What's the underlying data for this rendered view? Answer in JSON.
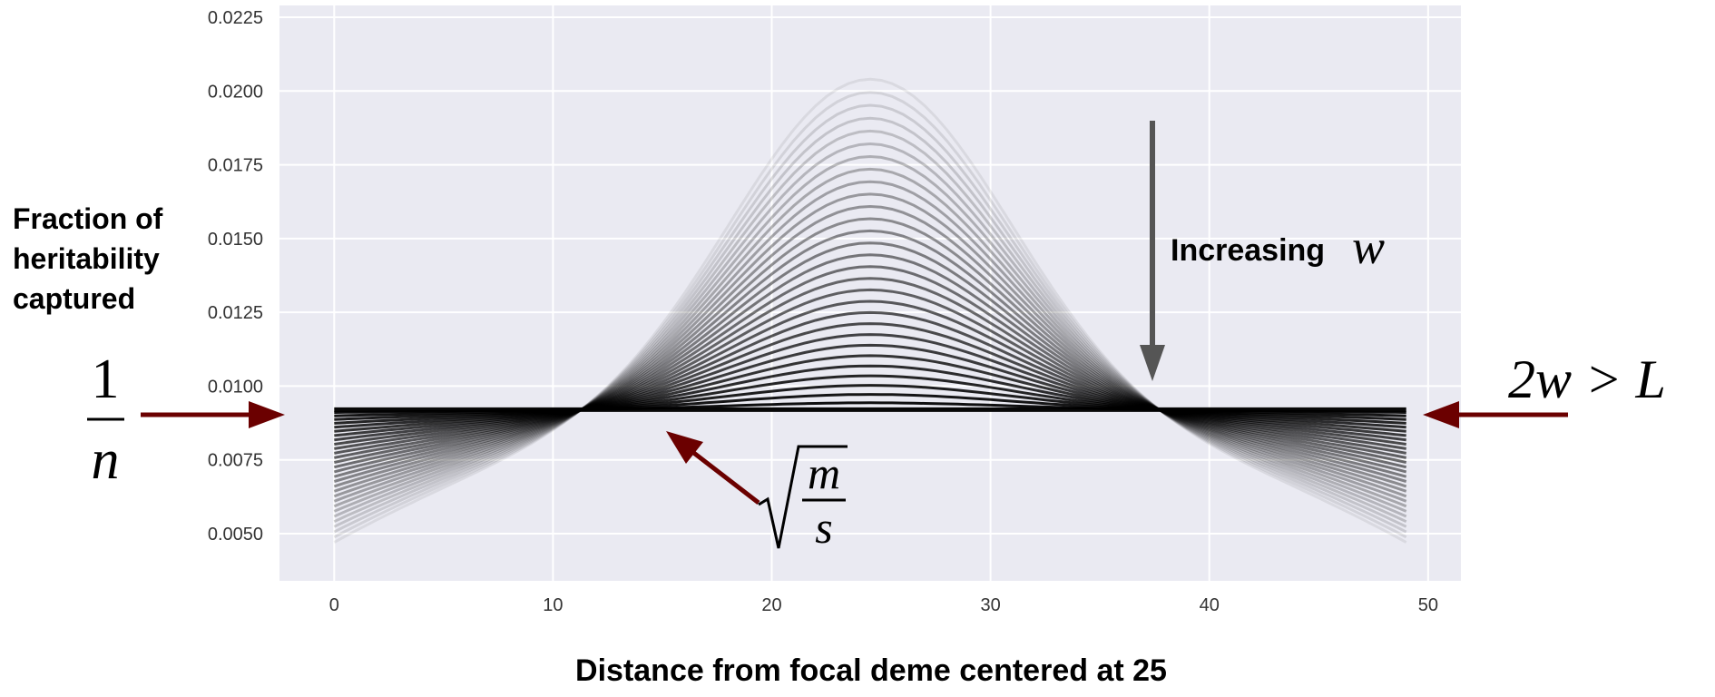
{
  "chart_data": {
    "type": "line",
    "xlabel": "Distance from focal deme centered at 25",
    "ylabel": "Fraction of heritability captured",
    "ylabel_lines": [
      "Fraction of",
      "heritability",
      "captured"
    ],
    "xlim": [
      -2.5,
      51.5
    ],
    "ylim": [
      0.0034,
      0.0229
    ],
    "x_ticks": [
      0,
      10,
      20,
      30,
      40,
      50
    ],
    "y_ticks": [
      "0.0050",
      "0.0075",
      "0.0100",
      "0.0125",
      "0.0150",
      "0.0175",
      "0.0200",
      "0.0225"
    ],
    "x_tick_labels": [
      "0",
      "10",
      "20",
      "30",
      "40",
      "50"
    ],
    "grid": true,
    "background": "#eaeaf2",
    "grid_color": "#ffffff",
    "line_color": "#000000",
    "arrow_color": "#6b0000",
    "annotation_arrow_color": "#555555",
    "x_domain": [
      0,
      49
    ],
    "center": 24.5,
    "baseline": 0.0092,
    "series_description": "family of curves, darker as w increases",
    "series_count": 30,
    "peak_max": 0.0204,
    "edge_min": 0.0047,
    "annotations": {
      "increasing": "Increasing",
      "increasing_symbol": "w",
      "left_numerator": "1",
      "left_denominator": "n",
      "right_math": "2w > L",
      "sqrt_numerator": "m",
      "sqrt_denominator": "s"
    }
  }
}
